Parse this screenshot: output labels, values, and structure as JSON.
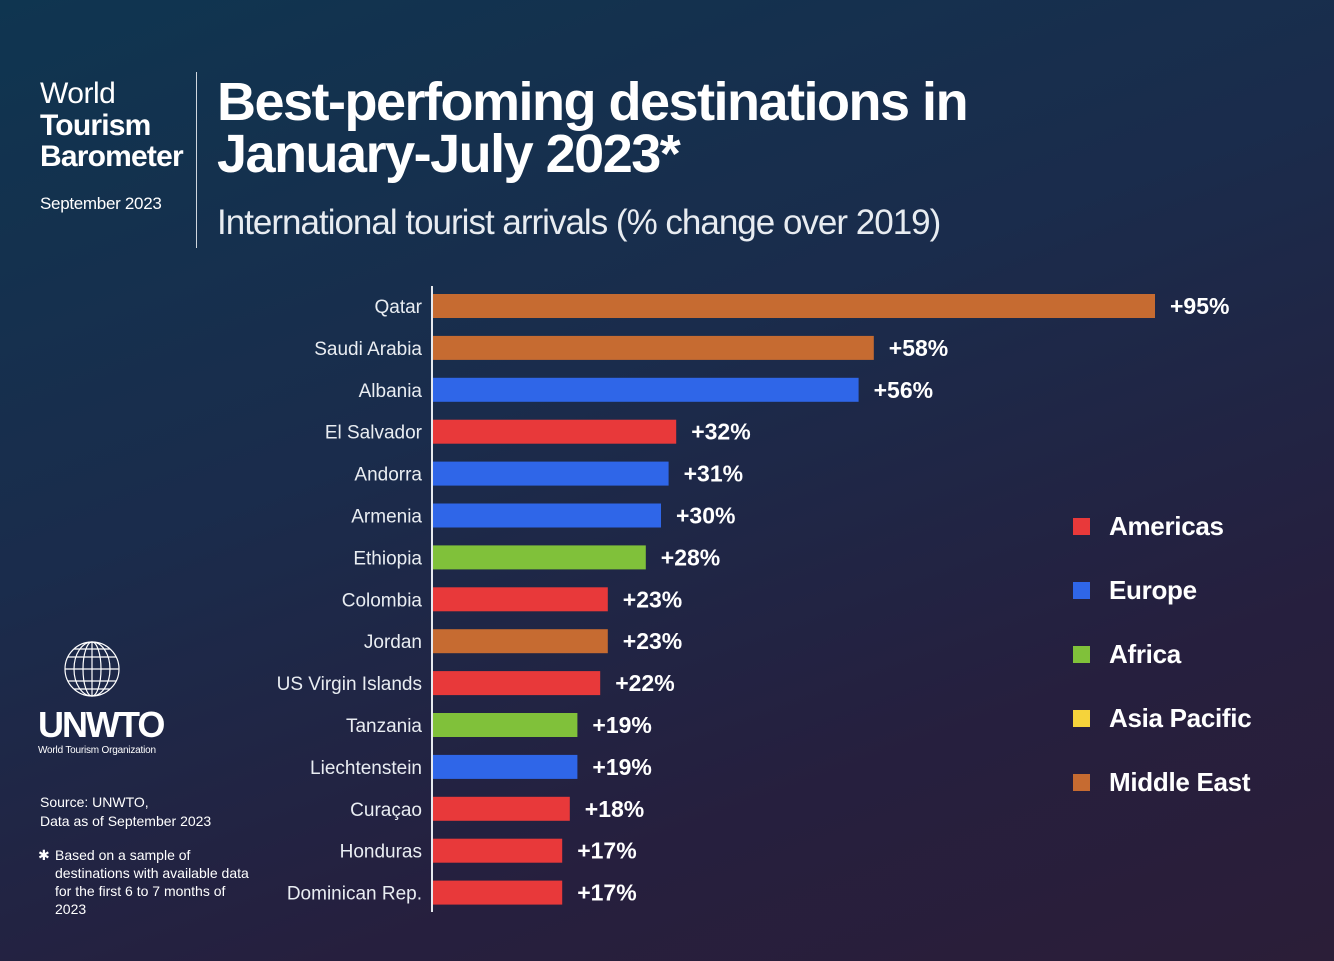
{
  "brand": {
    "line1": "World",
    "line2": "Tourism",
    "line3": "Barometer",
    "date": "September 2023"
  },
  "logo": {
    "name": "UNWTO",
    "subtitle": "World Tourism Organization"
  },
  "source": {
    "line1": "Source: UNWTO,",
    "line2": "Data as of September 2023"
  },
  "note": {
    "star": "✱",
    "text": "Based on a sample of destinations with available data for the first 6 to 7 months of 2023"
  },
  "colors": {
    "Americas": "#e8393a",
    "Europe": "#2f66e8",
    "Africa": "#80c13a",
    "Asia Pacific": "#f5d33b",
    "Middle East": "#c66b31"
  },
  "chart_data": {
    "type": "bar",
    "orientation": "horizontal",
    "title_line1": "Best-perfoming destinations in",
    "title_line2": "January-July 2023*",
    "subtitle": "International tourist arrivals (% change over 2019)",
    "xlim": [
      0,
      100
    ],
    "categories": [
      "Qatar",
      "Saudi Arabia",
      "Albania",
      "El Salvador",
      "Andorra",
      "Armenia",
      "Ethiopia",
      "Colombia",
      "Jordan",
      "US Virgin Islands",
      "Tanzania",
      "Liechtenstein",
      "Curaçao",
      "Honduras",
      "Dominican Rep."
    ],
    "values": [
      95,
      58,
      56,
      32,
      31,
      30,
      28,
      23,
      23,
      22,
      19,
      19,
      18,
      17,
      17
    ],
    "value_labels": [
      "+95%",
      "+58%",
      "+56%",
      "+32%",
      "+31%",
      "+30%",
      "+28%",
      "+23%",
      "+23%",
      "+22%",
      "+19%",
      "+19%",
      "+18%",
      "+17%",
      "+17%"
    ],
    "regions": [
      "Middle East",
      "Middle East",
      "Europe",
      "Americas",
      "Europe",
      "Europe",
      "Africa",
      "Americas",
      "Middle East",
      "Americas",
      "Africa",
      "Europe",
      "Americas",
      "Americas",
      "Americas"
    ],
    "legend": [
      "Americas",
      "Europe",
      "Africa",
      "Asia Pacific",
      "Middle East"
    ],
    "legend_position": "right"
  }
}
